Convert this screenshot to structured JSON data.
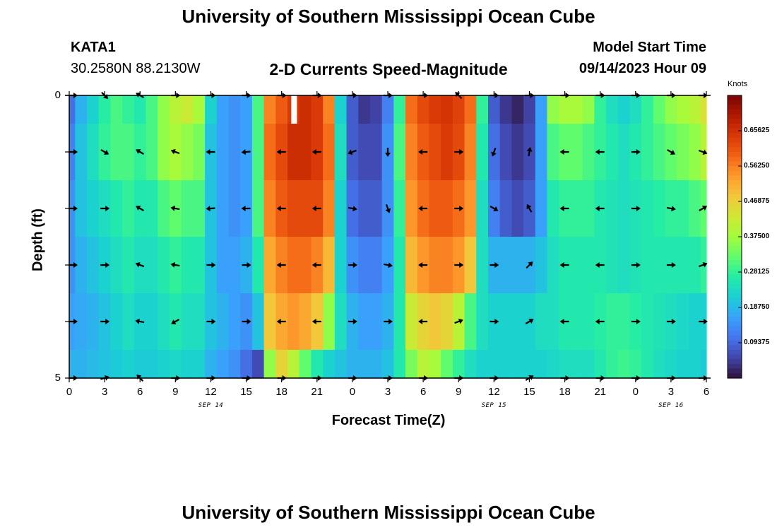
{
  "title": "University of Southern Mississippi Ocean Cube",
  "station": {
    "id": "KATA1",
    "coords": "30.2580N  88.2130W"
  },
  "subtitle": "2-D Currents Speed-Magnitude",
  "model_start": {
    "label": "Model Start Time",
    "value": "09/14/2023 Hour 09"
  },
  "bottom_title": "University of Southern Mississippi Ocean Cube",
  "chart_data": {
    "type": "heatmap",
    "title": "2-D Currents Speed-Magnitude",
    "xlabel": "Forecast Time(Z)",
    "ylabel": "Depth (ft)",
    "x_range_hours": [
      0,
      54
    ],
    "x_ticks": [
      "0",
      "3",
      "6",
      "9",
      "12",
      "15",
      "18",
      "21",
      "0",
      "3",
      "6",
      "9",
      "12",
      "15",
      "18",
      "21",
      "0",
      "3",
      "6"
    ],
    "date_labels": [
      {
        "hour": 12,
        "text": "SEP 14"
      },
      {
        "hour": 36,
        "text": "SEP 15"
      },
      {
        "hour": 51,
        "text": "SEP 16"
      }
    ],
    "y_range_ft": [
      0,
      5
    ],
    "y_ticks": [
      "0",
      "5"
    ],
    "colorbar": {
      "label": "Knots",
      "min": 0,
      "max": 0.75,
      "ticks": [
        "0.65625",
        "0.56250",
        "0.46875",
        "0.37500",
        "0.28125",
        "0.18750",
        "0.09375"
      ],
      "tick_values": [
        0.65625,
        0.5625,
        0.46875,
        0.375,
        0.28125,
        0.1875,
        0.09375
      ],
      "colors": [
        "#30123b",
        "#4145ab",
        "#4675ed",
        "#39a2fc",
        "#1bcfd4",
        "#24eca6",
        "#61fc6c",
        "#a4fc3b",
        "#d1e834",
        "#f3c63a",
        "#fe9b2d",
        "#f36315",
        "#d93806",
        "#b11901",
        "#7a0403"
      ]
    },
    "depth_rows_ft": [
      0.25,
      1.0,
      2.0,
      3.0,
      4.0,
      4.75
    ],
    "speed_knots_hourly": [
      [
        0.1,
        0.18,
        0.22,
        0.27,
        0.3,
        0.28,
        0.26,
        0.3,
        0.36,
        0.4,
        0.42,
        0.38,
        0.22,
        0.16,
        0.14,
        0.16,
        0.3,
        0.56,
        0.6,
        0.64,
        0.66,
        0.64,
        0.56,
        0.22,
        0.08,
        0.04,
        0.05,
        0.12,
        0.28,
        0.58,
        0.62,
        0.64,
        0.65,
        0.63,
        0.58,
        0.28,
        0.08,
        0.04,
        0.02,
        0.05,
        0.16,
        0.36,
        0.38,
        0.38,
        0.36,
        0.28,
        0.24,
        0.22,
        0.24,
        0.28,
        0.32,
        0.36,
        0.38,
        0.4,
        0.44
      ],
      [
        0.12,
        0.2,
        0.24,
        0.28,
        0.3,
        0.3,
        0.28,
        0.3,
        0.36,
        0.38,
        0.36,
        0.34,
        0.2,
        0.16,
        0.14,
        0.16,
        0.3,
        0.58,
        0.62,
        0.66,
        0.66,
        0.64,
        0.58,
        0.24,
        0.08,
        0.06,
        0.06,
        0.14,
        0.3,
        0.56,
        0.6,
        0.62,
        0.64,
        0.62,
        0.56,
        0.26,
        0.1,
        0.06,
        0.04,
        0.06,
        0.16,
        0.3,
        0.32,
        0.32,
        0.3,
        0.28,
        0.26,
        0.24,
        0.26,
        0.28,
        0.3,
        0.32,
        0.34,
        0.36,
        0.4
      ],
      [
        0.14,
        0.2,
        0.22,
        0.24,
        0.26,
        0.28,
        0.26,
        0.26,
        0.3,
        0.32,
        0.3,
        0.3,
        0.2,
        0.16,
        0.14,
        0.16,
        0.3,
        0.56,
        0.6,
        0.62,
        0.62,
        0.62,
        0.56,
        0.22,
        0.1,
        0.08,
        0.08,
        0.14,
        0.28,
        0.54,
        0.58,
        0.6,
        0.6,
        0.58,
        0.54,
        0.24,
        0.12,
        0.08,
        0.06,
        0.08,
        0.16,
        0.26,
        0.28,
        0.28,
        0.28,
        0.26,
        0.25,
        0.24,
        0.25,
        0.26,
        0.27,
        0.28,
        0.28,
        0.3,
        0.32
      ],
      [
        0.14,
        0.18,
        0.2,
        0.22,
        0.24,
        0.26,
        0.24,
        0.24,
        0.26,
        0.28,
        0.26,
        0.26,
        0.2,
        0.16,
        0.16,
        0.18,
        0.26,
        0.52,
        0.56,
        0.58,
        0.58,
        0.56,
        0.5,
        0.22,
        0.14,
        0.12,
        0.12,
        0.16,
        0.26,
        0.5,
        0.54,
        0.56,
        0.56,
        0.54,
        0.48,
        0.24,
        0.18,
        0.18,
        0.18,
        0.18,
        0.2,
        0.24,
        0.26,
        0.26,
        0.26,
        0.26,
        0.25,
        0.24,
        0.25,
        0.26,
        0.26,
        0.26,
        0.26,
        0.26,
        0.28
      ],
      [
        0.16,
        0.17,
        0.18,
        0.2,
        0.22,
        0.24,
        0.22,
        0.22,
        0.24,
        0.26,
        0.24,
        0.24,
        0.2,
        0.18,
        0.16,
        0.14,
        0.2,
        0.48,
        0.52,
        0.54,
        0.52,
        0.48,
        0.36,
        0.24,
        0.18,
        0.16,
        0.16,
        0.18,
        0.26,
        0.42,
        0.46,
        0.48,
        0.46,
        0.4,
        0.3,
        0.24,
        0.22,
        0.22,
        0.22,
        0.22,
        0.24,
        0.24,
        0.26,
        0.26,
        0.26,
        0.27,
        0.28,
        0.28,
        0.27,
        0.26,
        0.25,
        0.24,
        0.23,
        0.22,
        0.22
      ],
      [
        0.18,
        0.18,
        0.19,
        0.2,
        0.21,
        0.22,
        0.21,
        0.21,
        0.22,
        0.23,
        0.22,
        0.22,
        0.18,
        0.16,
        0.14,
        0.1,
        0.06,
        0.36,
        0.46,
        0.4,
        0.32,
        0.26,
        0.22,
        0.2,
        0.18,
        0.18,
        0.18,
        0.2,
        0.26,
        0.34,
        0.4,
        0.38,
        0.32,
        0.28,
        0.24,
        0.22,
        0.22,
        0.22,
        0.22,
        0.22,
        0.22,
        0.23,
        0.24,
        0.24,
        0.24,
        0.26,
        0.28,
        0.29,
        0.28,
        0.26,
        0.24,
        0.23,
        0.22,
        0.22,
        0.21
      ]
    ],
    "arrow_rows": [
      {
        "depth_ft": 0,
        "angles_deg": [
          0,
          45,
          -150,
          0,
          0,
          0,
          0,
          0,
          0,
          0,
          0,
          -135,
          0,
          0,
          0,
          0,
          0,
          0,
          0
        ]
      },
      {
        "depth_ft": 1.0,
        "angles_deg": [
          0,
          30,
          -150,
          -160,
          180,
          175,
          180,
          180,
          160,
          90,
          180,
          0,
          110,
          -80,
          180,
          180,
          0,
          30,
          20
        ]
      },
      {
        "depth_ft": 2.0,
        "angles_deg": [
          0,
          0,
          -150,
          -170,
          175,
          180,
          180,
          180,
          10,
          70,
          180,
          0,
          30,
          -120,
          180,
          180,
          0,
          10,
          -30
        ]
      },
      {
        "depth_ft": 3.0,
        "angles_deg": [
          0,
          0,
          -160,
          -170,
          0,
          0,
          180,
          180,
          0,
          10,
          180,
          0,
          0,
          -45,
          180,
          180,
          0,
          0,
          -20
        ]
      },
      {
        "depth_ft": 4.0,
        "angles_deg": [
          0,
          0,
          -170,
          150,
          0,
          0,
          180,
          180,
          0,
          0,
          180,
          -20,
          0,
          -30,
          180,
          180,
          0,
          0,
          0
        ]
      },
      {
        "depth_ft": 5.0,
        "angles_deg": [
          0,
          -15,
          -135,
          0,
          0,
          0,
          0,
          0,
          0,
          0,
          0,
          0,
          0,
          -30,
          0,
          0,
          0,
          0,
          0
        ]
      }
    ],
    "marker": {
      "hour": 19,
      "depth_ft": [
        0,
        0.5
      ]
    }
  }
}
